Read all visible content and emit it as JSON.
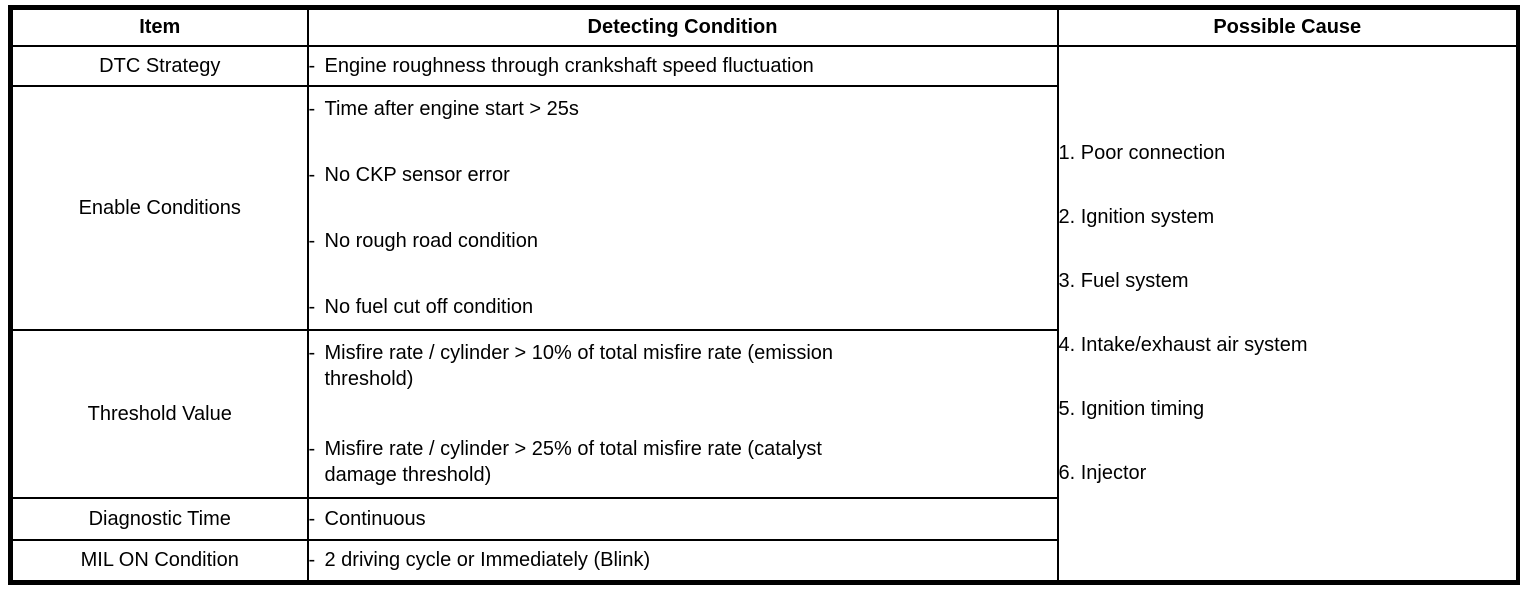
{
  "table": {
    "bullet": "-",
    "headers": [
      "Item",
      "Detecting Condition",
      "Possible Cause"
    ],
    "rows": [
      {
        "item": "DTC Strategy",
        "conditions": [
          "Engine roughness through crankshaft speed fluctuation"
        ]
      },
      {
        "item": "Enable Conditions",
        "conditions": [
          "Time after engine start > 25s",
          "No CKP sensor error",
          "No rough road condition",
          "No fuel cut off condition"
        ]
      },
      {
        "item": "Threshold Value",
        "conditions": [
          "Misfire rate / cylinder > 10% of total misfire rate (emission\nthreshold)",
          "Misfire rate / cylinder > 25% of total misfire rate (catalyst\ndamage threshold)"
        ]
      },
      {
        "item": "Diagnostic Time",
        "conditions": [
          "Continuous"
        ]
      },
      {
        "item": "MIL ON Condition",
        "conditions": [
          "2 driving cycle or Immediately (Blink)"
        ]
      }
    ],
    "possible_causes": [
      "1. Poor connection",
      "2. Ignition system",
      "3. Fuel system",
      "4. Intake/exhaust air system",
      "5. Ignition timing",
      "6. Injector"
    ]
  }
}
